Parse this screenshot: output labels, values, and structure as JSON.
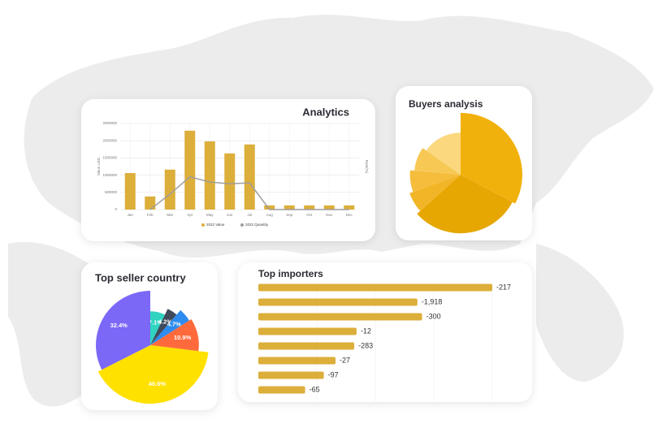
{
  "chart_data": [
    {
      "type": "bar",
      "title": "Analytics",
      "categories": [
        "Jan",
        "Feb",
        "Mar",
        "Apr",
        "May",
        "Jun",
        "Jul",
        "Aug",
        "Sep",
        "Oct",
        "Nov",
        "Dec"
      ],
      "series": [
        {
          "name": "2022 Value",
          "color": "#dcae3a",
          "values": [
            1060000,
            380000,
            1160000,
            2290000,
            1980000,
            1630000,
            1890000,
            120000,
            120000,
            120000,
            120000,
            120000
          ]
        },
        {
          "name": "2022 Quantity",
          "color": "#9e9e9e",
          "type": "line",
          "axis": "y2",
          "values": [
            null,
            0,
            18,
            38,
            32,
            30,
            31,
            0,
            0,
            0,
            0,
            0
          ]
        }
      ],
      "y_label": "Value USD",
      "y2_label": "Rate(%)",
      "ylim": [
        0,
        2500000
      ],
      "yticks": [
        0,
        500000,
        1000000,
        1500000,
        2000000,
        2500000
      ],
      "y2lim": [
        0,
        100
      ],
      "grid": true
    },
    {
      "type": "pie",
      "title": "Buyers analysis",
      "values": [
        118,
        110,
        22,
        25,
        30,
        55
      ],
      "radii": [
        100,
        95,
        88,
        82,
        75,
        68
      ],
      "rlim": [
        0,
        100
      ],
      "colors": [
        "#f1b10c",
        "#e6a703",
        "#f2b527",
        "#f5bd3b",
        "#f8c855",
        "#fbd77e"
      ]
    },
    {
      "type": "pie",
      "title": "Top seller country",
      "values": [
        7.1,
        4.2,
        4.7,
        10.9,
        40.6,
        32.4
      ],
      "value_labels": [
        "7.1%",
        "4.2%",
        "4.7%",
        "10.9%",
        "40.6%",
        "32.4%"
      ],
      "radii": [
        58,
        69,
        79,
        83,
        100,
        93
      ],
      "rlim": [
        0,
        100
      ],
      "colors": [
        "#2fd3c0",
        "#3f4a5a",
        "#2d8cf0",
        "#ff6a3d",
        "#ffe100",
        "#7b68f6"
      ]
    },
    {
      "type": "bar",
      "orientation": "horizontal",
      "title": "Top importers",
      "values": [
        100,
        68,
        70,
        42,
        41,
        33,
        28,
        20
      ],
      "labels": [
        "-217",
        "-1,918",
        "-300",
        "-12",
        "-283",
        "-27",
        "-97",
        "-65"
      ],
      "xlim": [
        0,
        100
      ],
      "color": "#dcae3a"
    }
  ]
}
